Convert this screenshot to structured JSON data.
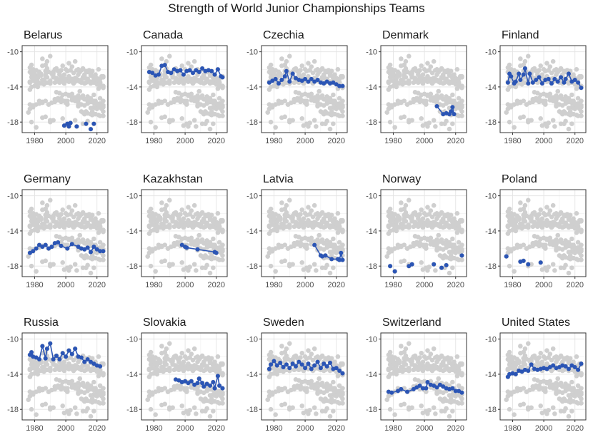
{
  "chart_data": {
    "type": "scatter",
    "title": "Strength of World Junior Championships Teams",
    "xlabel": "",
    "ylabel": "",
    "xlim": [
      1972,
      2027
    ],
    "ylim": [
      -19.2,
      -9.3
    ],
    "x_ticks": [
      1980,
      2000,
      2020
    ],
    "y_ticks": [
      -10,
      -14,
      -18
    ],
    "x_tick_labels": [
      "1980",
      "2000",
      "2020"
    ],
    "y_tick_labels": [
      "-10",
      "-14",
      "-18"
    ],
    "grid": true,
    "highlight_color": "#2B55B5",
    "background_color": "#CFCFCF",
    "panels": [
      {
        "title": "Belarus",
        "connected": false,
        "points": [
          [
            1999,
            -18.4
          ],
          [
            2001,
            -18.2
          ],
          [
            2002,
            -18.5
          ],
          [
            2003,
            -18.1
          ],
          [
            2007,
            -18.5
          ],
          [
            2013,
            -18.2
          ],
          [
            2016,
            -18.8
          ],
          [
            2018,
            -18.2
          ]
        ]
      },
      {
        "title": "Canada",
        "connected": true,
        "points": [
          [
            1977,
            -12.3
          ],
          [
            1979,
            -12.4
          ],
          [
            1981,
            -12.7
          ],
          [
            1983,
            -12.6
          ],
          [
            1985,
            -11.6
          ],
          [
            1987,
            -11.5
          ],
          [
            1989,
            -12.3
          ],
          [
            1991,
            -12.4
          ],
          [
            1993,
            -12.0
          ],
          [
            1995,
            -12.2
          ],
          [
            1997,
            -12.1
          ],
          [
            1999,
            -12.6
          ],
          [
            2001,
            -12.2
          ],
          [
            2003,
            -12.1
          ],
          [
            2005,
            -12.4
          ],
          [
            2007,
            -12.1
          ],
          [
            2009,
            -12.3
          ],
          [
            2011,
            -11.9
          ],
          [
            2013,
            -12.2
          ],
          [
            2015,
            -12.1
          ],
          [
            2017,
            -12.2
          ],
          [
            2019,
            -12.6
          ],
          [
            2021,
            -12.0
          ],
          [
            2023,
            -12.8
          ],
          [
            2024,
            -12.9
          ]
        ]
      },
      {
        "title": "Czechia",
        "connected": true,
        "points": [
          [
            1977,
            -13.5
          ],
          [
            1979,
            -13.3
          ],
          [
            1981,
            -13.1
          ],
          [
            1983,
            -13.6
          ],
          [
            1985,
            -13.2
          ],
          [
            1987,
            -12.8
          ],
          [
            1988,
            -12.2
          ],
          [
            1990,
            -13.4
          ],
          [
            1992,
            -12.5
          ],
          [
            1994,
            -13.0
          ],
          [
            1996,
            -13.2
          ],
          [
            1998,
            -13.3
          ],
          [
            2000,
            -13.1
          ],
          [
            2002,
            -13.4
          ],
          [
            2004,
            -13.1
          ],
          [
            2006,
            -13.4
          ],
          [
            2008,
            -13.2
          ],
          [
            2010,
            -13.5
          ],
          [
            2012,
            -13.6
          ],
          [
            2014,
            -13.4
          ],
          [
            2016,
            -13.6
          ],
          [
            2018,
            -13.5
          ],
          [
            2020,
            -13.7
          ],
          [
            2022,
            -13.9
          ],
          [
            2024,
            -13.9
          ]
        ]
      },
      {
        "title": "Denmark",
        "connected": true,
        "points": [
          [
            2008,
            -16.2
          ],
          [
            2012,
            -17.1
          ],
          [
            2014,
            -17.0
          ],
          [
            2016,
            -17.1
          ],
          [
            2017,
            -16.8
          ],
          [
            2018,
            -16.3
          ],
          [
            2019,
            -17.1
          ]
        ]
      },
      {
        "title": "Finland",
        "connected": true,
        "points": [
          [
            1977,
            -13.5
          ],
          [
            1978,
            -12.5
          ],
          [
            1979,
            -12.8
          ],
          [
            1981,
            -13.6
          ],
          [
            1982,
            -13.4
          ],
          [
            1984,
            -12.5
          ],
          [
            1985,
            -13.2
          ],
          [
            1987,
            -12.6
          ],
          [
            1988,
            -11.9
          ],
          [
            1990,
            -13.6
          ],
          [
            1991,
            -12.5
          ],
          [
            1993,
            -13.5
          ],
          [
            1995,
            -13.2
          ],
          [
            1997,
            -12.9
          ],
          [
            1999,
            -13.6
          ],
          [
            2001,
            -13.2
          ],
          [
            2003,
            -13.1
          ],
          [
            2005,
            -13.6
          ],
          [
            2007,
            -13.1
          ],
          [
            2009,
            -13.4
          ],
          [
            2011,
            -12.9
          ],
          [
            2013,
            -13.5
          ],
          [
            2014,
            -13.1
          ],
          [
            2016,
            -12.5
          ],
          [
            2018,
            -13.4
          ],
          [
            2020,
            -13.2
          ],
          [
            2022,
            -13.5
          ],
          [
            2024,
            -14.1
          ]
        ]
      },
      {
        "title": "Germany",
        "connected": true,
        "points": [
          [
            1977,
            -16.5
          ],
          [
            1979,
            -16.3
          ],
          [
            1981,
            -16.0
          ],
          [
            1983,
            -15.6
          ],
          [
            1985,
            -15.8
          ],
          [
            1987,
            -15.6
          ],
          [
            1989,
            -16.0
          ],
          [
            1991,
            -15.8
          ],
          [
            1993,
            -15.4
          ],
          [
            1995,
            -15.3
          ],
          [
            1997,
            -15.7
          ],
          [
            2001,
            -16.0
          ],
          [
            2004,
            -15.5
          ],
          [
            2008,
            -15.8
          ],
          [
            2010,
            -16.0
          ],
          [
            2012,
            -16.1
          ],
          [
            2014,
            -15.9
          ],
          [
            2016,
            -16.4
          ],
          [
            2018,
            -15.8
          ],
          [
            2020,
            -16.1
          ],
          [
            2022,
            -16.3
          ],
          [
            2024,
            -16.3
          ]
        ]
      },
      {
        "title": "Kazakhstan",
        "connected": true,
        "points": [
          [
            1998,
            -15.6
          ],
          [
            2000,
            -15.8
          ],
          [
            2001,
            -15.9
          ],
          [
            2008,
            -16.1
          ],
          [
            2019,
            -16.4
          ],
          [
            2020,
            -16.5
          ]
        ]
      },
      {
        "title": "Latvia",
        "connected": true,
        "points": [
          [
            2006,
            -15.6
          ],
          [
            2010,
            -16.8
          ],
          [
            2011,
            -16.9
          ],
          [
            2013,
            -16.8
          ],
          [
            2017,
            -17.2
          ],
          [
            2021,
            -17.2
          ],
          [
            2022,
            -17.3
          ],
          [
            2023,
            -16.5
          ],
          [
            2024,
            -17.3
          ]
        ]
      },
      {
        "title": "Norway",
        "connected": false,
        "points": [
          [
            1978,
            -18.0
          ],
          [
            1981,
            -18.6
          ],
          [
            1990,
            -18.0
          ],
          [
            1992,
            -17.8
          ],
          [
            2006,
            -17.8
          ],
          [
            2011,
            -18.2
          ],
          [
            2014,
            -17.9
          ],
          [
            2024,
            -16.8
          ]
        ]
      },
      {
        "title": "Poland",
        "connected": false,
        "points": [
          [
            1976,
            -16.9
          ],
          [
            1985,
            -17.5
          ],
          [
            1987,
            -17.4
          ],
          [
            1990,
            -17.8
          ],
          [
            1998,
            -17.6
          ]
        ]
      },
      {
        "title": "Russia",
        "connected": true,
        "points": [
          [
            1977,
            -11.8
          ],
          [
            1978,
            -11.5
          ],
          [
            1979,
            -12.0
          ],
          [
            1981,
            -12.1
          ],
          [
            1983,
            -12.3
          ],
          [
            1985,
            -10.8
          ],
          [
            1987,
            -12.2
          ],
          [
            1988,
            -11.1
          ],
          [
            1990,
            -10.5
          ],
          [
            1992,
            -12.3
          ],
          [
            1994,
            -11.9
          ],
          [
            1996,
            -12.3
          ],
          [
            1998,
            -11.6
          ],
          [
            2000,
            -12.0
          ],
          [
            2002,
            -11.3
          ],
          [
            2004,
            -11.7
          ],
          [
            2006,
            -11.1
          ],
          [
            2008,
            -12.0
          ],
          [
            2010,
            -12.1
          ],
          [
            2012,
            -12.6
          ],
          [
            2014,
            -12.3
          ],
          [
            2016,
            -12.6
          ],
          [
            2018,
            -12.8
          ],
          [
            2020,
            -13.0
          ],
          [
            2022,
            -13.1
          ]
        ]
      },
      {
        "title": "Slovakia",
        "connected": true,
        "points": [
          [
            1994,
            -14.6
          ],
          [
            1996,
            -14.7
          ],
          [
            1998,
            -14.9
          ],
          [
            2000,
            -14.8
          ],
          [
            2002,
            -15.0
          ],
          [
            2004,
            -14.8
          ],
          [
            2006,
            -15.2
          ],
          [
            2008,
            -15.0
          ],
          [
            2009,
            -14.5
          ],
          [
            2011,
            -15.0
          ],
          [
            2012,
            -15.4
          ],
          [
            2014,
            -15.1
          ],
          [
            2016,
            -15.3
          ],
          [
            2018,
            -14.9
          ],
          [
            2019,
            -15.6
          ],
          [
            2021,
            -14.2
          ],
          [
            2022,
            -15.3
          ],
          [
            2024,
            -15.6
          ]
        ]
      },
      {
        "title": "Sweden",
        "connected": true,
        "points": [
          [
            1977,
            -13.4
          ],
          [
            1978,
            -12.9
          ],
          [
            1980,
            -12.5
          ],
          [
            1982,
            -13.0
          ],
          [
            1984,
            -12.7
          ],
          [
            1986,
            -13.2
          ],
          [
            1988,
            -12.9
          ],
          [
            1990,
            -13.3
          ],
          [
            1992,
            -12.8
          ],
          [
            1994,
            -13.1
          ],
          [
            1996,
            -12.6
          ],
          [
            1998,
            -12.9
          ],
          [
            2000,
            -13.3
          ],
          [
            2002,
            -12.8
          ],
          [
            2004,
            -13.4
          ],
          [
            2006,
            -13.0
          ],
          [
            2008,
            -12.6
          ],
          [
            2010,
            -13.3
          ],
          [
            2012,
            -12.8
          ],
          [
            2014,
            -13.1
          ],
          [
            2016,
            -12.7
          ],
          [
            2018,
            -13.4
          ],
          [
            2020,
            -13.3
          ],
          [
            2022,
            -13.6
          ],
          [
            2024,
            -13.9
          ]
        ]
      },
      {
        "title": "Switzerland",
        "connected": true,
        "points": [
          [
            1977,
            -16.0
          ],
          [
            1979,
            -16.1
          ],
          [
            1983,
            -15.9
          ],
          [
            1985,
            -15.7
          ],
          [
            1989,
            -16.0
          ],
          [
            1993,
            -15.7
          ],
          [
            1995,
            -15.5
          ],
          [
            1997,
            -15.3
          ],
          [
            1999,
            -15.6
          ],
          [
            2001,
            -15.6
          ],
          [
            2002,
            -14.9
          ],
          [
            2004,
            -15.2
          ],
          [
            2006,
            -15.3
          ],
          [
            2008,
            -15.5
          ],
          [
            2010,
            -15.2
          ],
          [
            2012,
            -15.4
          ],
          [
            2014,
            -15.6
          ],
          [
            2016,
            -15.7
          ],
          [
            2018,
            -15.6
          ],
          [
            2020,
            -15.9
          ],
          [
            2022,
            -15.9
          ],
          [
            2024,
            -16.1
          ]
        ]
      },
      {
        "title": "United States",
        "connected": true,
        "points": [
          [
            1977,
            -14.3
          ],
          [
            1978,
            -14.0
          ],
          [
            1980,
            -13.9
          ],
          [
            1982,
            -14.0
          ],
          [
            1984,
            -13.6
          ],
          [
            1986,
            -13.7
          ],
          [
            1988,
            -13.5
          ],
          [
            1990,
            -13.6
          ],
          [
            1992,
            -12.9
          ],
          [
            1994,
            -13.4
          ],
          [
            1996,
            -13.5
          ],
          [
            1998,
            -13.4
          ],
          [
            2000,
            -13.3
          ],
          [
            2002,
            -13.4
          ],
          [
            2004,
            -13.2
          ],
          [
            2006,
            -13.0
          ],
          [
            2008,
            -13.3
          ],
          [
            2010,
            -13.2
          ],
          [
            2012,
            -13.0
          ],
          [
            2014,
            -13.1
          ],
          [
            2016,
            -13.4
          ],
          [
            2018,
            -13.0
          ],
          [
            2020,
            -13.2
          ],
          [
            2022,
            -13.5
          ],
          [
            2024,
            -12.8
          ]
        ]
      }
    ]
  }
}
